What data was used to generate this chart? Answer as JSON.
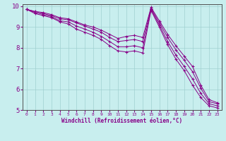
{
  "xlabel": "Windchill (Refroidissement éolien,°C)",
  "background_color": "#c8eeee",
  "line_color": "#880088",
  "xlim": [
    -0.5,
    23.5
  ],
  "ylim": [
    5,
    10.1
  ],
  "yticks": [
    5,
    6,
    7,
    8,
    9,
    10
  ],
  "xticks": [
    0,
    1,
    2,
    3,
    4,
    5,
    6,
    7,
    8,
    9,
    10,
    11,
    12,
    13,
    14,
    15,
    16,
    17,
    18,
    19,
    20,
    21,
    22,
    23
  ],
  "series": [
    [
      9.85,
      9.75,
      9.7,
      9.6,
      9.45,
      9.4,
      9.25,
      9.1,
      9.0,
      8.85,
      8.65,
      8.45,
      8.55,
      8.6,
      8.5,
      9.95,
      9.3,
      8.65,
      8.1,
      7.6,
      7.1,
      6.2,
      5.5,
      5.35
    ],
    [
      9.85,
      9.75,
      9.65,
      9.55,
      9.4,
      9.35,
      9.2,
      9.05,
      8.9,
      8.75,
      8.5,
      8.3,
      8.35,
      8.4,
      8.3,
      9.9,
      9.2,
      8.5,
      7.9,
      7.4,
      6.85,
      6.05,
      5.4,
      5.3
    ],
    [
      9.85,
      9.7,
      9.6,
      9.5,
      9.3,
      9.25,
      9.05,
      8.9,
      8.75,
      8.55,
      8.3,
      8.05,
      8.05,
      8.1,
      8.0,
      9.85,
      9.1,
      8.3,
      7.65,
      7.1,
      6.5,
      5.8,
      5.3,
      5.2
    ],
    [
      9.85,
      9.65,
      9.55,
      9.45,
      9.25,
      9.15,
      8.9,
      8.75,
      8.6,
      8.4,
      8.1,
      7.85,
      7.8,
      7.85,
      7.75,
      9.8,
      9.0,
      8.15,
      7.45,
      6.9,
      6.2,
      5.6,
      5.2,
      5.1
    ]
  ]
}
